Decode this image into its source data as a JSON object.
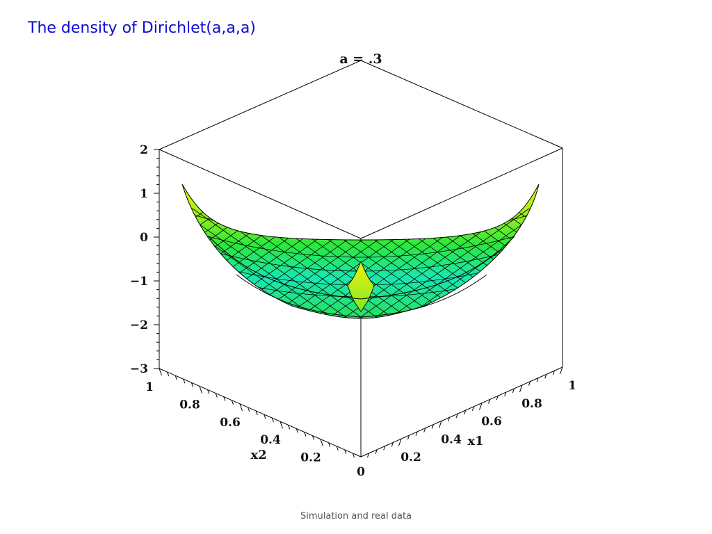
{
  "slide": {
    "title": "The density of Dirichlet(a,a,a)",
    "footer": "Simulation and real data"
  },
  "chart_data": {
    "type": "surface3d",
    "title": "a = .3",
    "parameter_a": 0.3,
    "xlabel": "x1",
    "ylabel": "x2",
    "zlabel": "",
    "xlim": [
      0,
      1
    ],
    "ylim": [
      0,
      1
    ],
    "zlim": [
      -3,
      2
    ],
    "x_ticks": [
      "0.2",
      "0.4",
      "0.6",
      "0.8",
      "1"
    ],
    "y_ticks": [
      "0.2",
      "0.4",
      "0.6",
      "0.8",
      "1"
    ],
    "origin_tick": "0",
    "z_ticks": [
      "2",
      "1",
      "0",
      "−1",
      "−2",
      "−3"
    ],
    "z_tick_values": [
      2,
      1,
      0,
      -1,
      -2,
      -3
    ],
    "surface_colors": {
      "high": "#f2f20a",
      "mid": "#23e840",
      "low": "#14e6cc"
    },
    "box_color": "#000000"
  }
}
